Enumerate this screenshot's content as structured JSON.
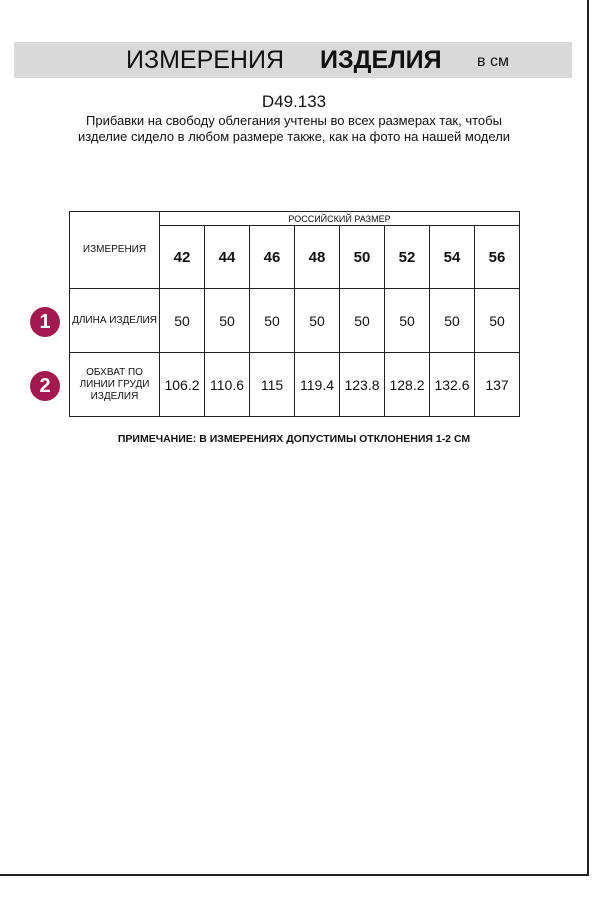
{
  "header": {
    "title_regular": "ИЗМЕРЕНИЯ",
    "title_bold": "ИЗДЕЛИЯ",
    "unit": "в см"
  },
  "article": "D49.133",
  "description": "Прибавки на свободу облегания учтены во всех размерах так, чтобы изделие сидело в любом размере также, как на фото на нашей модели",
  "table": {
    "corner_label": "ИЗМЕРЕНИЯ",
    "size_header": "РОССИЙСКИЙ РАЗМЕР",
    "sizes": [
      "42",
      "44",
      "46",
      "48",
      "50",
      "52",
      "54",
      "56"
    ],
    "rows": [
      {
        "badge": "1",
        "label": "ДЛИНА ИЗДЕЛИЯ",
        "values": [
          "50",
          "50",
          "50",
          "50",
          "50",
          "50",
          "50",
          "50"
        ]
      },
      {
        "badge": "2",
        "label": "ОБХВАТ ПО ЛИНИИ ГРУДИ ИЗДЕЛИЯ",
        "values": [
          "106.2",
          "110.6",
          "115",
          "119.4",
          "123.8",
          "128.2",
          "132.6",
          "137"
        ]
      }
    ]
  },
  "note": "ПРИМЕЧАНИЕ: В ИЗМЕРЕНИЯХ ДОПУСТИМЫ ОТКЛОНЕНИЯ 1-2 СМ",
  "colors": {
    "badge": "#a3184f",
    "band": "#d9d9d9"
  }
}
